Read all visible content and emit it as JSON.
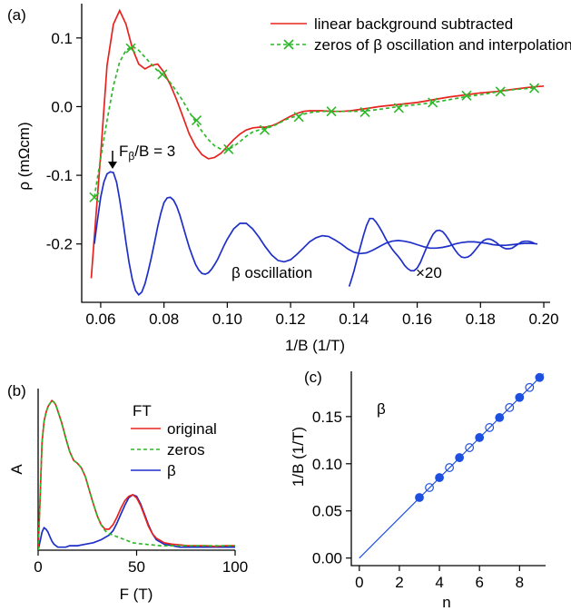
{
  "chart_data": [
    {
      "panel_label": "(a)",
      "type": "line",
      "xlabel": "1/B (1/T)",
      "ylabel": "ρ (mΩcm)",
      "xlim": [
        0.054,
        0.202
      ],
      "ylim": [
        -0.285,
        0.15
      ],
      "xticks": [
        0.06,
        0.08,
        0.1,
        0.12,
        0.14,
        0.16,
        0.18,
        0.2
      ],
      "xtick_labels": [
        "0.06",
        "0.08",
        "0.10",
        "0.12",
        "0.14",
        "0.16",
        "0.18",
        "0.20"
      ],
      "yticks": [
        -0.2,
        -0.1,
        0.0,
        0.1
      ],
      "ytick_labels": [
        "-0.2",
        "-0.1",
        "0.0",
        "0.1"
      ],
      "legend_placement": "top-right",
      "series": [
        {
          "name": "linear background subtracted",
          "color": "#e8231f",
          "style": "solid",
          "x": [
            0.057,
            0.058,
            0.06,
            0.062,
            0.064,
            0.066,
            0.068,
            0.07,
            0.072,
            0.074,
            0.076,
            0.078,
            0.08,
            0.082,
            0.084,
            0.086,
            0.088,
            0.09,
            0.092,
            0.094,
            0.096,
            0.098,
            0.1,
            0.102,
            0.104,
            0.106,
            0.108,
            0.11,
            0.112,
            0.114,
            0.116,
            0.118,
            0.12,
            0.122,
            0.124,
            0.126,
            0.128,
            0.13,
            0.133,
            0.136,
            0.139,
            0.142,
            0.145,
            0.148,
            0.152,
            0.156,
            0.16,
            0.165,
            0.17,
            0.175,
            0.18,
            0.185,
            0.19,
            0.195,
            0.2
          ],
          "y": [
            -0.25,
            -0.19,
            -0.07,
            0.06,
            0.12,
            0.14,
            0.12,
            0.085,
            0.062,
            0.055,
            0.06,
            0.062,
            0.05,
            0.032,
            0.01,
            -0.015,
            -0.04,
            -0.058,
            -0.07,
            -0.076,
            -0.074,
            -0.068,
            -0.058,
            -0.048,
            -0.04,
            -0.034,
            -0.031,
            -0.03,
            -0.03,
            -0.028,
            -0.024,
            -0.019,
            -0.014,
            -0.01,
            -0.007,
            -0.006,
            -0.006,
            -0.006,
            -0.007,
            -0.007,
            -0.006,
            -0.004,
            -0.002,
            0.0,
            0.002,
            0.004,
            0.006,
            0.01,
            0.014,
            0.017,
            0.02,
            0.022,
            0.025,
            0.028,
            0.03
          ]
        },
        {
          "name": "zeros of β oscillation and interpolation",
          "color": "#2db829",
          "style": "dashed",
          "markers": "x",
          "x": [
            0.058,
            0.06,
            0.062,
            0.064,
            0.066,
            0.068,
            0.07,
            0.072,
            0.074,
            0.076,
            0.078,
            0.08,
            0.082,
            0.084,
            0.086,
            0.088,
            0.09,
            0.092,
            0.094,
            0.096,
            0.098,
            0.1,
            0.102,
            0.104,
            0.106,
            0.108,
            0.11,
            0.112,
            0.114,
            0.116,
            0.118,
            0.12,
            0.122,
            0.124,
            0.127,
            0.13,
            0.133,
            0.136,
            0.14,
            0.144,
            0.148,
            0.154,
            0.16,
            0.165,
            0.17,
            0.176,
            0.181,
            0.186,
            0.191,
            0.197
          ],
          "y": [
            -0.132,
            -0.075,
            -0.02,
            0.03,
            0.065,
            0.082,
            0.088,
            0.082,
            0.072,
            0.062,
            0.052,
            0.045,
            0.035,
            0.022,
            0.008,
            -0.008,
            -0.022,
            -0.036,
            -0.048,
            -0.057,
            -0.062,
            -0.063,
            -0.058,
            -0.051,
            -0.043,
            -0.037,
            -0.034,
            -0.032,
            -0.029,
            -0.025,
            -0.02,
            -0.016,
            -0.014,
            -0.011,
            -0.008,
            -0.007,
            -0.007,
            -0.007,
            -0.007,
            -0.006,
            -0.004,
            0.0,
            0.003,
            0.006,
            0.01,
            0.015,
            0.018,
            0.022,
            0.025,
            0.027
          ],
          "marker_x": [
            0.058,
            0.0695,
            0.0795,
            0.0903,
            0.1004,
            0.1118,
            0.1226,
            0.1329,
            0.1435,
            0.1542,
            0.1649,
            0.1756,
            0.1863,
            0.197
          ],
          "marker_y": [
            -0.132,
            0.085,
            0.047,
            -0.02,
            -0.062,
            -0.034,
            -0.015,
            -0.007,
            -0.008,
            -0.002,
            0.006,
            0.016,
            0.022,
            0.027
          ]
        },
        {
          "name": "β oscillation",
          "color": "#1e2fc8",
          "style": "solid",
          "description_points": "damped oscillation around -0.2 with zeros spaced ~0.0107",
          "x": [
            0.058,
            0.059,
            0.06,
            0.061,
            0.062,
            0.063,
            0.064,
            0.065,
            0.066,
            0.067,
            0.068,
            0.069,
            0.07,
            0.071,
            0.072,
            0.073,
            0.074,
            0.075,
            0.076,
            0.077,
            0.078,
            0.079,
            0.08,
            0.081,
            0.082,
            0.083,
            0.084,
            0.085,
            0.086,
            0.087,
            0.088,
            0.089,
            0.09,
            0.091,
            0.092,
            0.093,
            0.094,
            0.095,
            0.096,
            0.097,
            0.098,
            0.099,
            0.1,
            0.102,
            0.104,
            0.106,
            0.108,
            0.11,
            0.112,
            0.114,
            0.116,
            0.118,
            0.12,
            0.122,
            0.124,
            0.126,
            0.128,
            0.13,
            0.132,
            0.134,
            0.136,
            0.138,
            0.14,
            0.142,
            0.144,
            0.146,
            0.148,
            0.15,
            0.152,
            0.154,
            0.156,
            0.158,
            0.16,
            0.162,
            0.164,
            0.166,
            0.168,
            0.17,
            0.172,
            0.174,
            0.176,
            0.178,
            0.18,
            0.182,
            0.184,
            0.186,
            0.188,
            0.19,
            0.192,
            0.194,
            0.196,
            0.198
          ],
          "y": [
            -0.2,
            -0.165,
            -0.132,
            -0.11,
            -0.098,
            -0.095,
            -0.096,
            -0.11,
            -0.135,
            -0.165,
            -0.198,
            -0.228,
            -0.252,
            -0.268,
            -0.274,
            -0.27,
            -0.258,
            -0.24,
            -0.22,
            -0.198,
            -0.175,
            -0.155,
            -0.14,
            -0.133,
            -0.132,
            -0.136,
            -0.145,
            -0.158,
            -0.174,
            -0.19,
            -0.205,
            -0.218,
            -0.23,
            -0.238,
            -0.243,
            -0.244,
            -0.242,
            -0.237,
            -0.23,
            -0.222,
            -0.212,
            -0.202,
            -0.193,
            -0.178,
            -0.17,
            -0.17,
            -0.178,
            -0.19,
            -0.204,
            -0.216,
            -0.224,
            -0.226,
            -0.223,
            -0.215,
            -0.206,
            -0.197,
            -0.191,
            -0.188,
            -0.189,
            -0.194,
            -0.2,
            -0.207,
            -0.212,
            -0.214,
            -0.213,
            -0.209,
            -0.204,
            -0.199,
            -0.196,
            -0.195,
            -0.196,
            -0.198,
            -0.201,
            -0.204,
            -0.206,
            -0.206,
            -0.205,
            -0.203,
            -0.2,
            -0.198,
            -0.197,
            -0.197,
            -0.198,
            -0.199,
            -0.201,
            -0.202,
            -0.202,
            -0.201,
            -0.2,
            -0.199,
            -0.199,
            -0.2
          ]
        },
        {
          "name": "×20",
          "color": "#1e2fc8",
          "style": "solid",
          "x": [
            0.1385,
            0.139,
            0.14,
            0.141,
            0.142,
            0.143,
            0.144,
            0.145,
            0.146,
            0.147,
            0.148,
            0.149,
            0.15,
            0.151,
            0.152,
            0.153,
            0.154,
            0.155,
            0.156,
            0.157,
            0.158,
            0.159,
            0.16,
            0.161,
            0.162,
            0.163,
            0.164,
            0.165,
            0.166,
            0.167,
            0.168,
            0.169,
            0.17,
            0.171,
            0.172,
            0.173,
            0.174,
            0.175,
            0.176,
            0.177,
            0.178,
            0.179,
            0.18,
            0.181,
            0.182,
            0.183,
            0.184,
            0.185,
            0.186,
            0.187,
            0.188,
            0.189,
            0.19,
            0.191,
            0.192,
            0.193,
            0.194,
            0.195,
            0.196,
            0.197
          ],
          "y": [
            -0.262,
            -0.255,
            -0.24,
            -0.222,
            -0.205,
            -0.188,
            -0.173,
            -0.163,
            -0.163,
            -0.168,
            -0.175,
            -0.183,
            -0.192,
            -0.2,
            -0.207,
            -0.213,
            -0.218,
            -0.224,
            -0.231,
            -0.236,
            -0.239,
            -0.239,
            -0.235,
            -0.227,
            -0.216,
            -0.205,
            -0.195,
            -0.186,
            -0.181,
            -0.18,
            -0.182,
            -0.187,
            -0.194,
            -0.202,
            -0.209,
            -0.215,
            -0.219,
            -0.22,
            -0.219,
            -0.216,
            -0.211,
            -0.205,
            -0.199,
            -0.195,
            -0.193,
            -0.193,
            -0.195,
            -0.198,
            -0.202,
            -0.205,
            -0.207,
            -0.207,
            -0.206,
            -0.203,
            -0.2,
            -0.197,
            -0.196,
            -0.196,
            -0.197,
            -0.199
          ]
        }
      ],
      "annotations": [
        {
          "text": "F_β/B = 3",
          "x": 0.064,
          "y": -0.095,
          "arrow": true
        },
        {
          "text": "β oscillation",
          "x": 0.121,
          "y": -0.24
        },
        {
          "text": "×20",
          "x": 0.163,
          "y": -0.24
        }
      ]
    },
    {
      "panel_label": "(b)",
      "type": "line",
      "xlabel": "F (T)",
      "ylabel": "A",
      "xlim": [
        0,
        100
      ],
      "ylim": [
        0,
        1.08
      ],
      "xticks": [
        0,
        50,
        100
      ],
      "xtick_labels": [
        "0",
        "50",
        "100"
      ],
      "legend_title": "FT",
      "legend_placement": "top-right",
      "series": [
        {
          "name": "original",
          "color": "#e8231f",
          "style": "solid",
          "x": [
            0,
            1,
            2,
            3,
            4,
            5,
            6,
            7,
            8,
            9,
            10,
            12,
            14,
            16,
            18,
            20,
            22,
            24,
            26,
            28,
            30,
            32,
            34,
            36,
            38,
            40,
            42,
            44,
            46,
            48,
            50,
            52,
            54,
            56,
            58,
            60,
            64,
            68,
            72,
            76,
            80,
            85,
            90,
            95,
            100
          ],
          "y": [
            0.0,
            0.35,
            0.72,
            0.86,
            0.92,
            0.96,
            0.98,
            1.0,
            0.99,
            0.97,
            0.93,
            0.85,
            0.75,
            0.66,
            0.6,
            0.58,
            0.55,
            0.49,
            0.4,
            0.31,
            0.23,
            0.17,
            0.14,
            0.14,
            0.17,
            0.22,
            0.28,
            0.33,
            0.36,
            0.37,
            0.35,
            0.3,
            0.23,
            0.16,
            0.11,
            0.08,
            0.05,
            0.04,
            0.035,
            0.03,
            0.03,
            0.03,
            0.025,
            0.03,
            0.03
          ]
        },
        {
          "name": "zeros",
          "color": "#2db829",
          "style": "dashed",
          "x": [
            0,
            1,
            2,
            3,
            4,
            5,
            6,
            7,
            8,
            9,
            10,
            12,
            14,
            16,
            18,
            20,
            22,
            24,
            26,
            28,
            30,
            32,
            34,
            36,
            38,
            40,
            42,
            44,
            46,
            48,
            50,
            54,
            58,
            62,
            66,
            70,
            76,
            82,
            90,
            100
          ],
          "y": [
            0.0,
            0.35,
            0.72,
            0.86,
            0.92,
            0.96,
            0.98,
            1.0,
            0.99,
            0.97,
            0.93,
            0.85,
            0.75,
            0.66,
            0.6,
            0.58,
            0.55,
            0.49,
            0.4,
            0.31,
            0.23,
            0.17,
            0.13,
            0.11,
            0.1,
            0.09,
            0.08,
            0.07,
            0.06,
            0.05,
            0.045,
            0.04,
            0.035,
            0.03,
            0.03,
            0.03,
            0.03,
            0.03,
            0.03,
            0.03
          ]
        },
        {
          "name": "β",
          "color": "#1e2fc8",
          "style": "solid",
          "x": [
            0,
            1,
            2,
            3,
            4,
            5,
            6,
            7,
            8,
            10,
            12,
            14,
            16,
            20,
            24,
            28,
            32,
            36,
            38,
            40,
            42,
            44,
            46,
            48,
            50,
            52,
            54,
            56,
            58,
            60,
            64,
            68,
            72,
            76,
            80,
            90,
            100
          ],
          "y": [
            0.0,
            0.06,
            0.12,
            0.15,
            0.14,
            0.12,
            0.09,
            0.06,
            0.04,
            0.02,
            0.02,
            0.02,
            0.03,
            0.03,
            0.04,
            0.05,
            0.07,
            0.1,
            0.13,
            0.18,
            0.24,
            0.3,
            0.35,
            0.37,
            0.36,
            0.31,
            0.24,
            0.17,
            0.11,
            0.07,
            0.04,
            0.03,
            0.02,
            0.02,
            0.02,
            0.02,
            0.02
          ]
        }
      ]
    },
    {
      "panel_label": "(c)",
      "type": "scatter",
      "xlabel": "n",
      "ylabel": "1/B (1/T)",
      "xlim": [
        -0.4,
        9.3
      ],
      "ylim": [
        -0.008,
        0.198
      ],
      "xticks": [
        0,
        2,
        4,
        6,
        8
      ],
      "xtick_labels": [
        "0",
        "2",
        "4",
        "6",
        "8"
      ],
      "yticks": [
        0.0,
        0.05,
        0.1,
        0.15
      ],
      "ytick_labels": [
        "0.00",
        "0.05",
        "0.10",
        "0.15"
      ],
      "annotation": "β",
      "fit_line": {
        "x": [
          0,
          9.2
        ],
        "y": [
          0.0,
          0.1955
        ]
      },
      "series": [
        {
          "name": "",
          "marker": "filled",
          "color": "#1e50e0",
          "x": [
            3,
            4,
            5,
            6,
            7,
            8,
            9
          ],
          "y": [
            0.0642,
            0.0853,
            0.1065,
            0.1278,
            0.149,
            0.1703,
            0.1915
          ]
        },
        {
          "name": "",
          "marker": "open",
          "color": "#1e50e0",
          "x": [
            3.5,
            4.5,
            5.5,
            6.5,
            7.5,
            8.5
          ],
          "y": [
            0.0748,
            0.0959,
            0.1171,
            0.1384,
            0.1596,
            0.1809
          ]
        }
      ]
    }
  ]
}
